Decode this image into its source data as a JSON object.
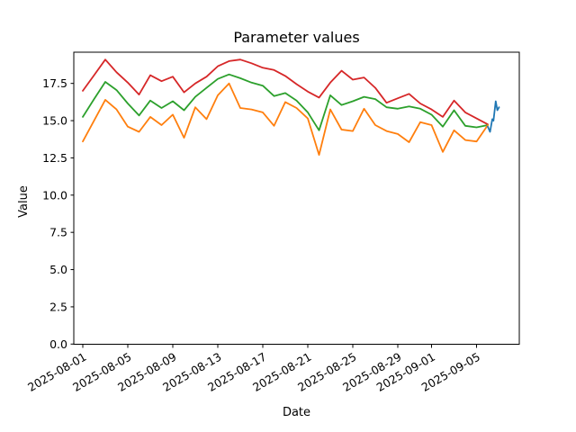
{
  "figure": {
    "title": "Parameter values",
    "background_color": "#ffffff",
    "spine_color": "#000000"
  },
  "chart_data": {
    "type": "line",
    "title": "Parameter values",
    "xlabel": "Date",
    "ylabel": "Value",
    "ylim": [
      0.0,
      19.6
    ],
    "grid": false,
    "legend": "none",
    "x_tick_labels": [
      "2025-08-01",
      "2025-08-05",
      "2025-08-09",
      "2025-08-13",
      "2025-08-17",
      "2025-08-21",
      "2025-08-25",
      "2025-08-29",
      "2025-09-01",
      "2025-09-05"
    ],
    "y_tick_labels": [
      "0.0",
      "2.5",
      "5.0",
      "7.5",
      "10.0",
      "12.5",
      "15.0",
      "17.5"
    ],
    "x_dates": [
      "2025-08-01",
      "2025-08-02",
      "2025-08-03",
      "2025-08-04",
      "2025-08-05",
      "2025-08-06",
      "2025-08-07",
      "2025-08-08",
      "2025-08-09",
      "2025-08-10",
      "2025-08-11",
      "2025-08-12",
      "2025-08-13",
      "2025-08-14",
      "2025-08-15",
      "2025-08-16",
      "2025-08-17",
      "2025-08-18",
      "2025-08-19",
      "2025-08-20",
      "2025-08-21",
      "2025-08-22",
      "2025-08-23",
      "2025-08-24",
      "2025-08-25",
      "2025-08-26",
      "2025-08-27",
      "2025-08-28",
      "2025-08-29",
      "2025-08-30",
      "2025-08-31",
      "2025-09-01",
      "2025-09-02",
      "2025-09-03",
      "2025-09-04",
      "2025-09-05",
      "2025-09-06"
    ],
    "series": [
      {
        "name": "red",
        "color": "#d62728",
        "values": [
          17.0,
          18.05,
          19.1,
          18.25,
          17.55,
          16.75,
          18.05,
          17.65,
          17.95,
          16.9,
          17.5,
          17.95,
          18.65,
          19.0,
          19.1,
          18.85,
          18.55,
          18.4,
          18.0,
          17.45,
          16.95,
          16.55,
          17.55,
          18.35,
          17.75,
          17.9,
          17.2,
          16.2,
          16.5,
          16.8,
          16.15,
          15.75,
          15.25,
          16.35,
          15.55,
          15.15,
          14.75
        ]
      },
      {
        "name": "green",
        "color": "#2ca02c",
        "values": [
          15.25,
          16.45,
          17.6,
          17.05,
          16.15,
          15.35,
          16.35,
          15.85,
          16.3,
          15.7,
          16.6,
          17.2,
          17.8,
          18.1,
          17.85,
          17.55,
          17.35,
          16.65,
          16.85,
          16.35,
          15.55,
          14.35,
          16.7,
          16.05,
          16.3,
          16.6,
          16.45,
          15.9,
          15.8,
          15.95,
          15.8,
          15.4,
          14.6,
          15.7,
          14.65,
          14.55,
          14.7
        ]
      },
      {
        "name": "orange",
        "color": "#ff7f0e",
        "values": [
          13.6,
          15.0,
          16.4,
          15.75,
          14.6,
          14.25,
          15.25,
          14.7,
          15.4,
          13.85,
          15.9,
          15.1,
          16.7,
          17.5,
          15.85,
          15.75,
          15.55,
          14.65,
          16.25,
          15.85,
          15.15,
          12.7,
          15.75,
          14.4,
          14.3,
          15.8,
          14.7,
          14.3,
          14.1,
          13.55,
          14.9,
          14.7,
          12.9,
          14.35,
          13.7,
          13.6,
          14.7
        ]
      },
      {
        "name": "blue",
        "color": "#1f77b4",
        "x_day_offsets": [
          36.0,
          36.2,
          36.4,
          36.5,
          36.7,
          36.85,
          37.0
        ],
        "values": [
          14.6,
          14.25,
          15.1,
          15.0,
          16.3,
          15.7,
          15.9
        ]
      }
    ]
  }
}
